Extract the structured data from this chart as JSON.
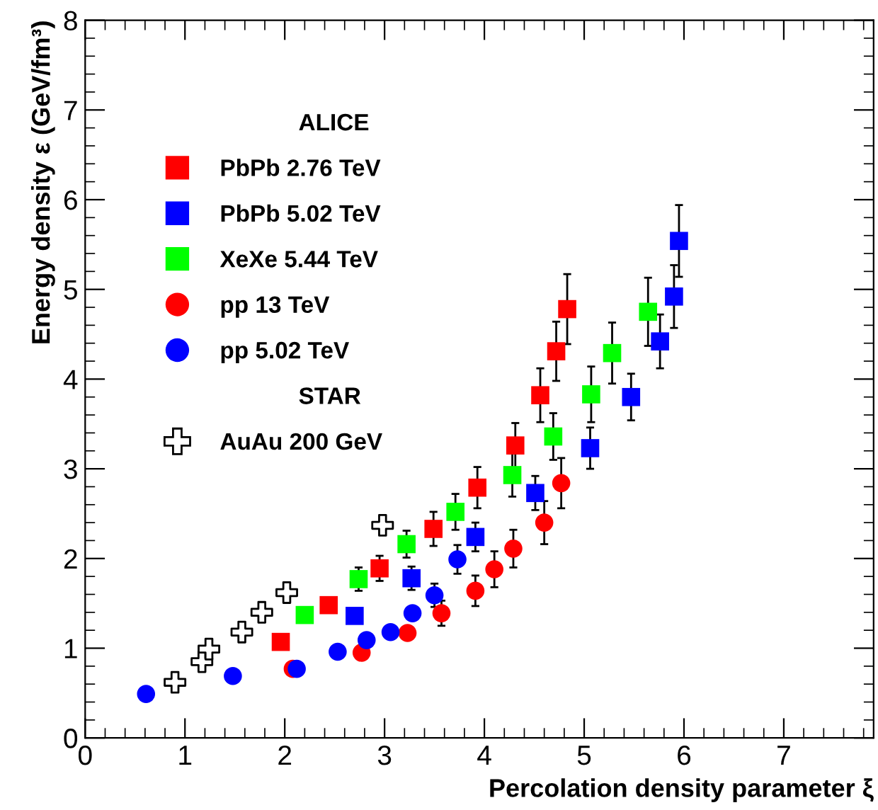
{
  "chart_data": {
    "type": "scatter",
    "xlabel": "Percolation density parameter ξ",
    "ylabel": "Energy density ε (GeV/fm³)",
    "legend_title": "ALICE",
    "annotations": [
      "STAR"
    ],
    "legend": "top left",
    "grid": false,
    "xlim": [
      0,
      7.9
    ],
    "xticks": [
      0,
      1,
      2,
      3,
      4,
      5,
      6,
      7
    ],
    "ylim": [
      0,
      8
    ],
    "yticks": [
      0,
      1,
      2,
      3,
      4,
      5,
      6,
      7,
      8
    ],
    "series": [
      {
        "name": "PbPb 2.76 TeV",
        "color": "#ff0000",
        "marker": "square",
        "x": [
          1.96,
          2.44,
          2.95,
          3.49,
          3.93,
          4.31,
          4.56,
          4.72,
          4.83
        ],
        "values": [
          1.07,
          1.48,
          1.89,
          2.33,
          2.79,
          3.26,
          3.82,
          4.31,
          4.78
        ],
        "errors": [
          null,
          null,
          0.14,
          0.19,
          0.23,
          0.25,
          0.3,
          0.33,
          0.39
        ]
      },
      {
        "name": "PbPb 5.02 TeV",
        "color": "#0000ff",
        "marker": "square",
        "x": [
          2.7,
          3.27,
          3.91,
          4.51,
          5.06,
          5.47,
          5.76,
          5.9,
          5.95
        ],
        "values": [
          1.36,
          1.78,
          2.24,
          2.73,
          3.23,
          3.8,
          4.42,
          4.92,
          5.54
        ],
        "errors": [
          null,
          0.13,
          0.16,
          0.19,
          0.23,
          0.26,
          0.3,
          0.35,
          0.4
        ]
      },
      {
        "name": "XeXe 5.44 TeV",
        "color": "#00ff00",
        "marker": "square",
        "x": [
          2.2,
          2.74,
          3.22,
          3.71,
          4.28,
          4.69,
          5.07,
          5.28,
          5.64
        ],
        "values": [
          1.37,
          1.77,
          2.16,
          2.52,
          2.93,
          3.36,
          3.83,
          4.29,
          4.75
        ],
        "errors": [
          null,
          0.13,
          0.15,
          0.2,
          0.24,
          0.26,
          0.31,
          0.34,
          0.38
        ]
      },
      {
        "name": "pp 13 TeV",
        "color": "#ff0000",
        "marker": "circle",
        "x": [
          2.08,
          2.77,
          3.23,
          3.57,
          3.91,
          4.1,
          4.29,
          4.6,
          4.77
        ],
        "values": [
          0.77,
          0.95,
          1.17,
          1.39,
          1.64,
          1.88,
          2.11,
          2.4,
          2.84
        ],
        "errors": [
          null,
          null,
          null,
          0.14,
          0.17,
          0.2,
          0.21,
          0.24,
          0.28
        ]
      },
      {
        "name": "pp 5.02 TeV",
        "color": "#0000ff",
        "marker": "circle",
        "x": [
          0.61,
          1.48,
          2.12,
          2.53,
          2.82,
          3.06,
          3.28,
          3.5,
          3.73
        ],
        "values": [
          0.49,
          0.69,
          0.77,
          0.96,
          1.09,
          1.18,
          1.39,
          1.59,
          1.99
        ],
        "errors": [
          null,
          null,
          null,
          null,
          null,
          null,
          null,
          0.13,
          0.16
        ]
      },
      {
        "name": "AuAu 200 GeV",
        "color": "#000000",
        "marker": "cross",
        "x": [
          0.9,
          1.17,
          1.24,
          1.57,
          1.77,
          2.02,
          2.98
        ],
        "values": [
          0.62,
          0.85,
          0.99,
          1.18,
          1.4,
          1.62,
          2.37
        ]
      }
    ]
  }
}
